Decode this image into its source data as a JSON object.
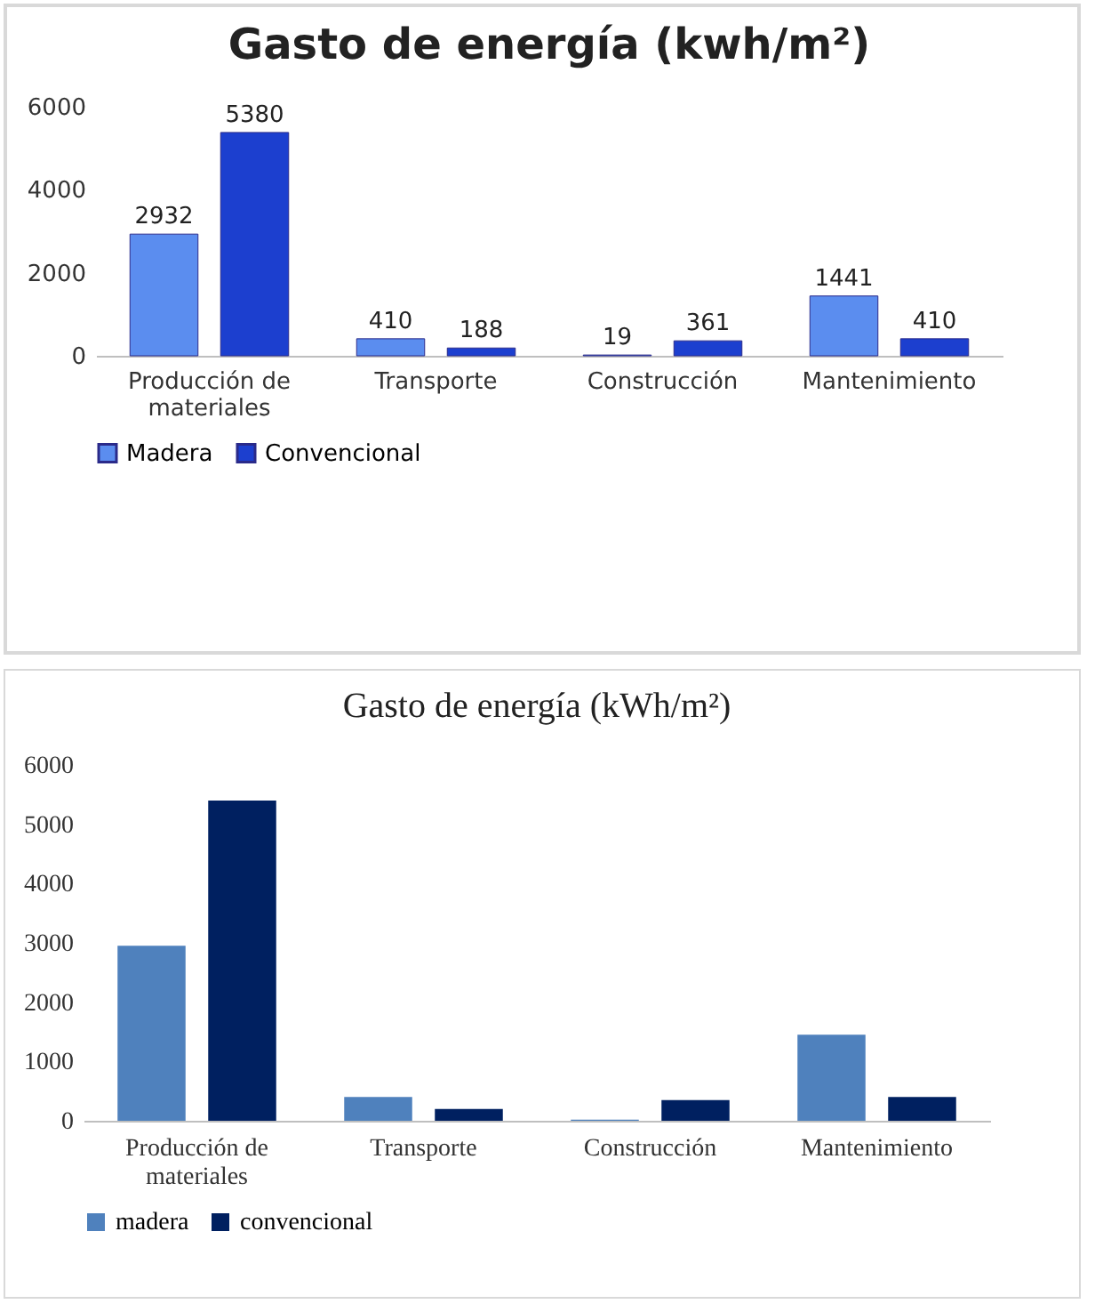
{
  "chart_data": [
    {
      "type": "bar",
      "title": "Gasto de energía (kwh/m²)",
      "categories": [
        "Producción de materiales",
        "Transporte",
        "Construcción",
        "Mantenimiento"
      ],
      "series": [
        {
          "name": "Madera",
          "color": "#5b8def",
          "values": [
            2932,
            410,
            19,
            1441
          ]
        },
        {
          "name": "Convencional",
          "color": "#1c3fcf",
          "values": [
            5380,
            188,
            361,
            410
          ]
        }
      ],
      "ylim": [
        0,
        6000
      ],
      "yticks": [
        0,
        2000,
        4000,
        6000
      ],
      "data_labels": true,
      "legend": "bottom"
    },
    {
      "type": "bar",
      "title": "Gasto de energía (kWh/m²)",
      "categories": [
        "Producción de materiales",
        "Transporte",
        "Construcción",
        "Mantenimiento"
      ],
      "series": [
        {
          "name": "madera",
          "color": "#4f81bd",
          "values": [
            2950,
            400,
            20,
            1450
          ]
        },
        {
          "name": "convencional",
          "color": "#002060",
          "values": [
            5400,
            200,
            350,
            400
          ]
        }
      ],
      "ylim": [
        0,
        6000
      ],
      "yticks": [
        0,
        1000,
        2000,
        3000,
        4000,
        5000,
        6000
      ],
      "legend": "bottom"
    }
  ]
}
